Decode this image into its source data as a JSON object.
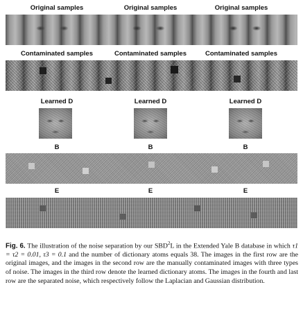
{
  "figure": {
    "columns": [
      {
        "original_label": "Original samples",
        "contaminated_label": "Contaminated samples",
        "dict_label": "Learned D",
        "b_label": "B",
        "e_label": "E"
      },
      {
        "original_label": "Original samples",
        "contaminated_label": "Contaminated samples",
        "dict_label": "Learned D",
        "b_label": "B",
        "e_label": "E"
      },
      {
        "original_label": "Original samples",
        "contaminated_label": "Contaminated samples",
        "dict_label": "Learned D",
        "b_label": "B",
        "e_label": "E"
      }
    ]
  },
  "caption": {
    "fig_label": "Fig. 6.",
    "part1": " The illustration of the noise separation by our SBD",
    "sup": "2",
    "part2": "L in the Extended Yale B database in which ",
    "math": "τ1 = τ2 = 0.01, τ3 = 0.1",
    "part3": " and the number of dictionary atoms equals 38. The images in the first row are the original images, and the images in the second row are the manually contaminated images with three types of noise. The images in the third row denote the learned dictionary atoms. The images in the fourth and last row are the separated noise, which respectively follow the Laplacian and Gaussian distribution."
  }
}
